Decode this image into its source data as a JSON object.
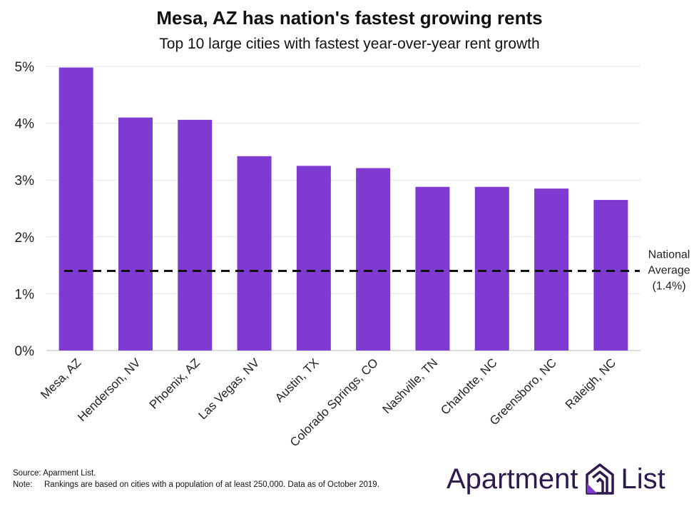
{
  "header": {
    "title": "Mesa, AZ has nation's fastest growing rents",
    "subtitle": "Top 10 large cities with fastest year-over-year rent growth"
  },
  "chart_data": {
    "type": "bar",
    "categories": [
      "Mesa, AZ",
      "Henderson, NV",
      "Phoenix, AZ",
      "Las Vegas, NV",
      "Austin, TX",
      "Colorado Springs, CO",
      "Nashville, TN",
      "Charlotte, NC",
      "Greensboro, NC",
      "Raleigh, NC"
    ],
    "values": [
      4.98,
      4.1,
      4.06,
      3.42,
      3.25,
      3.21,
      2.88,
      2.88,
      2.85,
      2.65
    ],
    "ylim": [
      0,
      5
    ],
    "yticks": [
      0,
      1,
      2,
      3,
      4,
      5
    ],
    "ytick_labels": [
      "0%",
      "1%",
      "2%",
      "3%",
      "4%",
      "5%"
    ],
    "grid": true,
    "bar_color": "#7f3ad2",
    "reference_line": {
      "value": 1.4,
      "label_lines": [
        "National",
        "Average",
        "(1.4%)"
      ],
      "style": "dashed",
      "color": "#111111"
    }
  },
  "footer": {
    "source": "Source: Aparment List.",
    "note_key": "Note:",
    "note_text": "Rankings are based on cities with a population of at least 250,000. Data as of October 2019."
  },
  "brand": {
    "name_left": "Apartment",
    "name_right": "List",
    "color": "#2d1a4e",
    "accent": "#7f3ad2"
  }
}
